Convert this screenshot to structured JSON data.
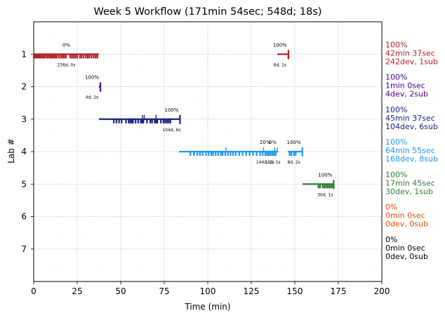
{
  "chart_data": {
    "type": "timeline",
    "title": "Week 5 Workflow (171min 54sec; 548d; 18s)",
    "xlabel": "Time (min)",
    "ylabel": "Lab #",
    "xlim": [
      0,
      200
    ],
    "ylim": [
      8,
      0
    ],
    "x_ticks": [
      "0",
      "25",
      "50",
      "75",
      "100",
      "125",
      "150",
      "175",
      "200"
    ],
    "y_ticks": [
      "1",
      "2",
      "3",
      "4",
      "5",
      "6",
      "7"
    ],
    "grid": true,
    "labs": [
      {
        "lab": 1,
        "color": "#b22222",
        "summary": [
          "100%",
          "42min 37sec",
          "242dev, 1sub"
        ],
        "segments": [
          {
            "start": 0,
            "end": 37.5,
            "pct": "0%",
            "note": "236d, 0s",
            "ticks": [
              0.5,
              1.2,
              2,
              2.8,
              3.5,
              4.4,
              5.3,
              6,
              7,
              8,
              9,
              9.7,
              10.6,
              11.5,
              12.4,
              13.3,
              14.5,
              15.6,
              16.6,
              17.5,
              18.5,
              21,
              22,
              23,
              24,
              25,
              26.5,
              27.5,
              28.7,
              30,
              31,
              32,
              33.2,
              34.4,
              35.5,
              36.5
            ]
          },
          {
            "start": 140,
            "end": 146.5,
            "pct": "100%",
            "note": "6d, 1s",
            "ticks": [
              146.3
            ],
            "end_marker": 146.3
          }
        ]
      },
      {
        "lab": 2,
        "color": "#4b0082",
        "summary": [
          "100%",
          "1min 0sec",
          "4dev, 2sub"
        ],
        "segments": [
          {
            "start": 37.5,
            "end": 38.5,
            "pct": "100%",
            "note": "4d, 2s",
            "ticks": [],
            "end_marker": 38.3
          }
        ]
      },
      {
        "lab": 3,
        "color": "#1a237e",
        "summary": [
          "100%",
          "45min 37sec",
          "104dev, 6sub"
        ],
        "segments": [
          {
            "start": 37.5,
            "end": 84,
            "pct": "100%",
            "note": "104d, 6s",
            "ticks": [
              46,
              47.5,
              49,
              50.5,
              53,
              54.5,
              55.5,
              56.3,
              57,
              58.5,
              60,
              61.5,
              62.3,
              63,
              65,
              67,
              68,
              69.5,
              70.3,
              71,
              73,
              74.5,
              75.5,
              76.5,
              77.5,
              78.5
            ],
            "up_ticks": [
              62.5,
              63.5,
              70.3
            ],
            "end_marker": 84
          }
        ]
      },
      {
        "lab": 4,
        "color": "#2196f3",
        "summary": [
          "100%",
          "64min 55sec",
          "168dev, 8sub"
        ],
        "segments": [
          {
            "start": 83.5,
            "end": 140.5,
            "pct": "",
            "note": "",
            "ticks": [
              90,
              92,
              94,
              95.5,
              97,
              99,
              100.5,
              102,
              103,
              104.5,
              106,
              107.5,
              108.5,
              110,
              111.5,
              113,
              114.5,
              116,
              118,
              120,
              122,
              124,
              126,
              128,
              130,
              131.5,
              133,
              134,
              135,
              136,
              137,
              138,
              139
            ],
            "up_ticks": [
              110.5,
              132,
              138.5,
              140
            ]
          },
          {
            "start": 132,
            "end": 134,
            "pct": "20%",
            "note": "144d, 1s",
            "ticks": []
          },
          {
            "start": 134,
            "end": 140.5,
            "pct": "0%",
            "note": "16d, 1s",
            "ticks": []
          },
          {
            "start": 146,
            "end": 154.5,
            "pct": "100%",
            "note": "8d, 2s",
            "ticks": [
              147,
              148,
              149.5,
              150.5
            ],
            "end_marker": 154.3
          }
        ]
      },
      {
        "lab": 5,
        "color": "#2e7d32",
        "summary": [
          "100%",
          "17min 45sec",
          "30dev, 1sub"
        ],
        "segments": [
          {
            "start": 154.5,
            "end": 172.5,
            "pct": "100%",
            "note": "30d, 1s",
            "ticks": [
              163.5,
              164.5,
              166,
              167,
              168,
              169,
              170,
              171,
              172
            ],
            "end_marker": 172.3
          }
        ]
      },
      {
        "lab": 6,
        "color": "#e65100",
        "summary": [
          "0%",
          "0min 0sec",
          "0dev, 0sub"
        ],
        "segments": []
      },
      {
        "lab": 7,
        "color": "#000000",
        "summary": [
          "0%",
          "0min 0sec",
          "0dev, 0sub"
        ],
        "segments": []
      }
    ]
  }
}
